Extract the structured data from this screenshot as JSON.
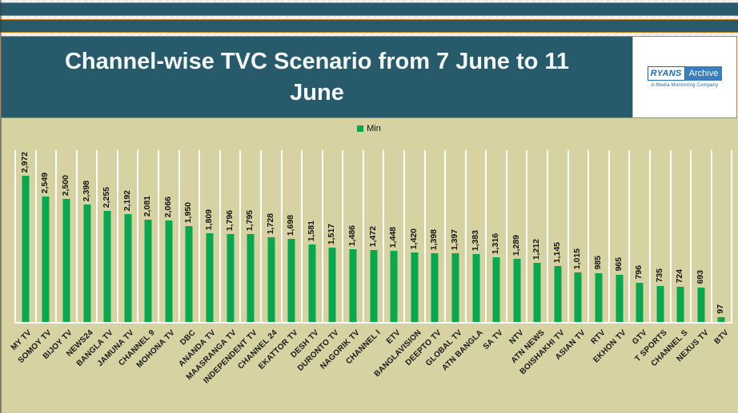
{
  "header": {
    "title": "Channel-wise TVC Scenario from 7 June to 11 June",
    "logo": {
      "brand_left": "RYANS",
      "brand_right": "Archive",
      "tagline": "A Media Monitoring Company"
    }
  },
  "legend": {
    "label": "Min"
  },
  "colors": {
    "banner_teal": "#275A6B",
    "banner_border_orange": "#C8861B",
    "chart_background": "#D6D2A2",
    "bar_green": "#0AA751",
    "gridline_white": "#FFFFFF",
    "logo_blue": "#1B6CB5"
  },
  "chart_data": {
    "type": "bar",
    "title": "Channel-wise TVC Scenario from 7 June to 11 June",
    "series_name": "Min",
    "legend_position": "top-center",
    "ylabel": "",
    "xlabel": "",
    "ylim": [
      0,
      3500
    ],
    "grid": "white vertical separators between categories, white baseline",
    "categories": [
      "MY TV",
      "SOMOY TV",
      "BIJOY TV",
      "NEWS24",
      "BANGLA TV",
      "JAMUNA TV",
      "CHANNEL 9",
      "MOHONA TV",
      "DBC",
      "ANANDA TV",
      "MAASRANGA TV",
      "INDEPENDENT TV",
      "CHANNEL 24",
      "EKATTOR TV",
      "DESH TV",
      "DURONTO TV",
      "NAGORIK TV",
      "CHANNEL I",
      "ETV",
      "BANGLAVISION",
      "DEEPTO TV",
      "GLOBAL TV",
      "ATN BANGLA",
      "SA TV",
      "NTV",
      "ATN NEWS",
      "BOISHAKHI TV",
      "ASIAN TV",
      "RTV",
      "EKHON TV",
      "GTV",
      "T SPORTS",
      "CHANNEL S",
      "NEXUS TV",
      "BTV"
    ],
    "values": [
      2972,
      2549,
      2500,
      2398,
      2255,
      2192,
      2081,
      2066,
      1950,
      1809,
      1796,
      1795,
      1728,
      1698,
      1581,
      1517,
      1486,
      1472,
      1448,
      1420,
      1398,
      1397,
      1383,
      1316,
      1289,
      1212,
      1145,
      1015,
      985,
      965,
      796,
      735,
      724,
      693,
      97
    ]
  }
}
